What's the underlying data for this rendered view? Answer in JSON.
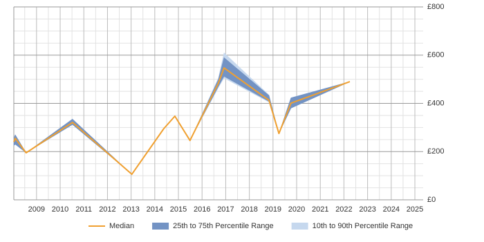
{
  "chart_data": {
    "type": "line-range",
    "x": [
      2008.04,
      2008.1,
      2008.56,
      2010.52,
      2013.03,
      2014.38,
      2014.85,
      2015.49,
      2016.69,
      2016.93,
      2018.83,
      2019.25,
      2019.76,
      2022.25
    ],
    "series": [
      {
        "name": "10th to 90th Percentile Range",
        "color": "#c6d8ee",
        "low": [
          225,
          230,
          195,
          312,
          106,
          295,
          347,
          246,
          465,
          505,
          405,
          275,
          380,
          490
        ],
        "high": [
          255,
          270,
          195,
          335,
          106,
          295,
          347,
          246,
          505,
          610,
          435,
          275,
          423,
          490
        ]
      },
      {
        "name": "25th to 75th Percentile Range",
        "color": "#7393c4",
        "low": [
          225,
          230,
          195,
          312,
          106,
          295,
          347,
          246,
          470,
          512,
          408,
          275,
          380,
          490
        ],
        "high": [
          255,
          270,
          195,
          335,
          106,
          295,
          347,
          246,
          500,
          590,
          433,
          275,
          423,
          490
        ]
      },
      {
        "name": "Median",
        "color": "#f0a030",
        "values": [
          240,
          255,
          195,
          321,
          106,
          295,
          347,
          246,
          484,
          547,
          413,
          275,
          401,
          490
        ]
      }
    ],
    "legend_order": [
      2,
      1,
      0
    ],
    "xlim": [
      2008.04,
      2025.35
    ],
    "xticks": [
      2009,
      2010,
      2011,
      2012,
      2013,
      2014,
      2015,
      2016,
      2017,
      2018,
      2019,
      2020,
      2021,
      2022,
      2023,
      2024,
      2025
    ],
    "ylim": [
      0,
      800
    ],
    "yticks": [
      {
        "value": 0,
        "label": "£0"
      },
      {
        "value": 200,
        "label": "£200"
      },
      {
        "value": 400,
        "label": "£400"
      },
      {
        "value": 600,
        "label": "£600"
      },
      {
        "value": 800,
        "label": "£800"
      }
    ],
    "grid": true,
    "x_minor_per_major": 2,
    "y_minor_per_major": 4,
    "legend_position": "bottom"
  }
}
